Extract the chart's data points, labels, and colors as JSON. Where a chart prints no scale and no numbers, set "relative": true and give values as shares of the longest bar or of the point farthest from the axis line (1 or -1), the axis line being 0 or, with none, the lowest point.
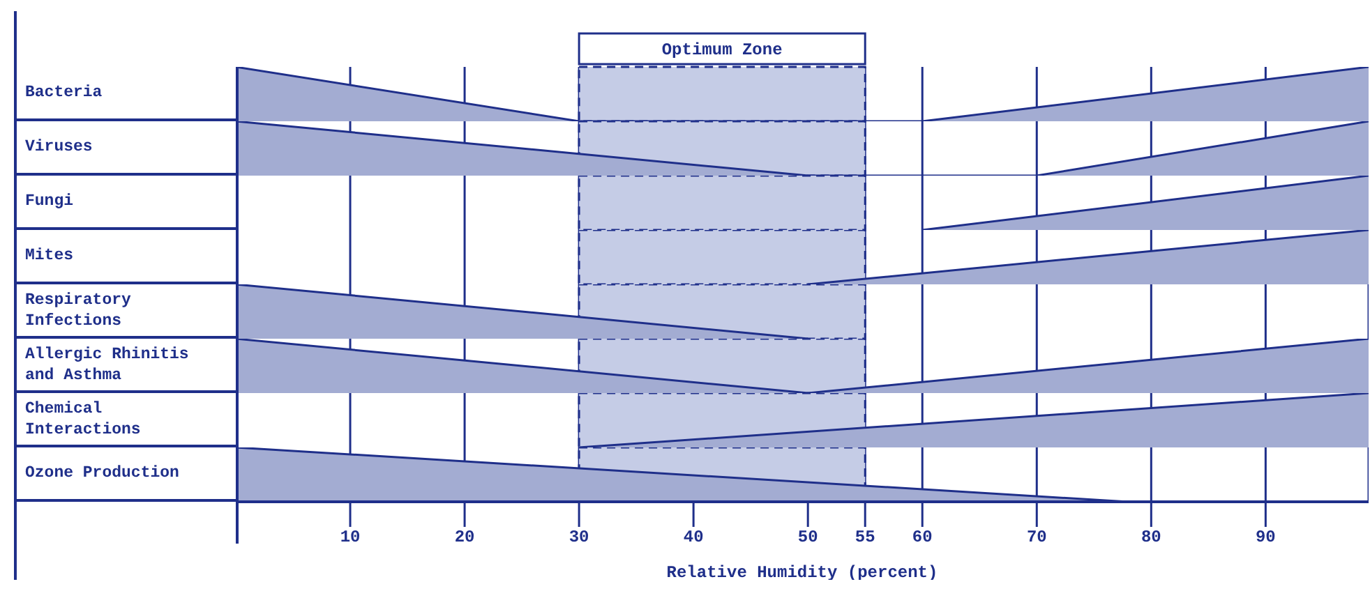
{
  "chart_data": [
    {
      "type": "area",
      "ylabel": "Bacteria",
      "relative": true,
      "color": "#a3acd2",
      "x": [
        0,
        30,
        60,
        99
      ],
      "values": [
        1,
        0,
        0,
        1
      ],
      "xlim": [
        0,
        99
      ],
      "xticks": [
        10,
        20,
        30,
        40,
        50,
        55,
        60,
        70,
        80,
        90
      ],
      "grid": "x",
      "tick_labels": false,
      "bands": [
        {
          "axis": "x",
          "from": 30,
          "to": 55,
          "label": "Optimum Zone",
          "color": "#c5cce6"
        }
      ]
    },
    {
      "type": "area",
      "ylabel": "Viruses",
      "relative": true,
      "color": "#a3acd2",
      "x": [
        0,
        50,
        70,
        99
      ],
      "values": [
        1,
        0,
        0,
        1
      ],
      "xlim": [
        0,
        99
      ],
      "xticks": [
        10,
        20,
        30,
        40,
        50,
        55,
        60,
        70,
        80,
        90
      ],
      "grid": "x",
      "tick_labels": false,
      "bands": [
        {
          "axis": "x",
          "from": 30,
          "to": 55,
          "color": "#c5cce6"
        }
      ]
    },
    {
      "type": "area",
      "ylabel": "Fungi",
      "relative": true,
      "color": "#a3acd2",
      "x": [
        60,
        99
      ],
      "values": [
        0,
        1
      ],
      "xlim": [
        0,
        99
      ],
      "xticks": [
        10,
        20,
        30,
        40,
        50,
        55,
        60,
        70,
        80,
        90
      ],
      "grid": "x",
      "tick_labels": false,
      "bands": [
        {
          "axis": "x",
          "from": 30,
          "to": 55,
          "color": "#c5cce6"
        }
      ]
    },
    {
      "type": "area",
      "ylabel": "Mites",
      "relative": true,
      "color": "#a3acd2",
      "x": [
        50,
        99
      ],
      "values": [
        0,
        1
      ],
      "xlim": [
        0,
        99
      ],
      "xticks": [
        10,
        20,
        30,
        40,
        50,
        55,
        60,
        70,
        80,
        90
      ],
      "grid": "x",
      "tick_labels": false,
      "bands": [
        {
          "axis": "x",
          "from": 30,
          "to": 55,
          "color": "#c5cce6"
        }
      ]
    },
    {
      "type": "area",
      "ylabel": "Respiratory Infections",
      "relative": true,
      "color": "#a3acd2",
      "x": [
        0,
        50
      ],
      "values": [
        1,
        0
      ],
      "xlim": [
        0,
        99
      ],
      "xticks": [
        10,
        20,
        30,
        40,
        50,
        55,
        60,
        70,
        80,
        90
      ],
      "grid": "x",
      "tick_labels": false,
      "bands": [
        {
          "axis": "x",
          "from": 30,
          "to": 55,
          "color": "#c5cce6"
        }
      ]
    },
    {
      "type": "area",
      "ylabel": "Allergic Rhinitis and Asthma",
      "relative": true,
      "color": "#a3acd2",
      "x": [
        0,
        50,
        99
      ],
      "values": [
        1,
        0,
        1
      ],
      "xlim": [
        0,
        99
      ],
      "xticks": [
        10,
        20,
        30,
        40,
        50,
        55,
        60,
        70,
        80,
        90
      ],
      "grid": "x",
      "tick_labels": false,
      "bands": [
        {
          "axis": "x",
          "from": 30,
          "to": 55,
          "color": "#c5cce6"
        }
      ]
    },
    {
      "type": "area",
      "ylabel": "Chemical Interactions",
      "relative": true,
      "color": "#a3acd2",
      "x": [
        30,
        99
      ],
      "values": [
        0,
        1
      ],
      "xlim": [
        0,
        99
      ],
      "xticks": [
        10,
        20,
        30,
        40,
        50,
        55,
        60,
        70,
        80,
        90
      ],
      "grid": "x",
      "tick_labels": false,
      "bands": [
        {
          "axis": "x",
          "from": 30,
          "to": 55,
          "color": "#c5cce6"
        }
      ]
    },
    {
      "type": "area",
      "ylabel": "Ozone Production",
      "relative": true,
      "color": "#a3acd2",
      "x": [
        0,
        78
      ],
      "values": [
        1,
        0
      ],
      "xlim": [
        0,
        99
      ],
      "xticks": [
        10,
        20,
        30,
        40,
        50,
        55,
        60,
        70,
        80,
        90
      ],
      "grid": "x",
      "xlabel": "Relative Humidity (percent)",
      "bands": [
        {
          "axis": "x",
          "from": 30,
          "to": 55,
          "color": "#c5cce6"
        }
      ]
    }
  ]
}
